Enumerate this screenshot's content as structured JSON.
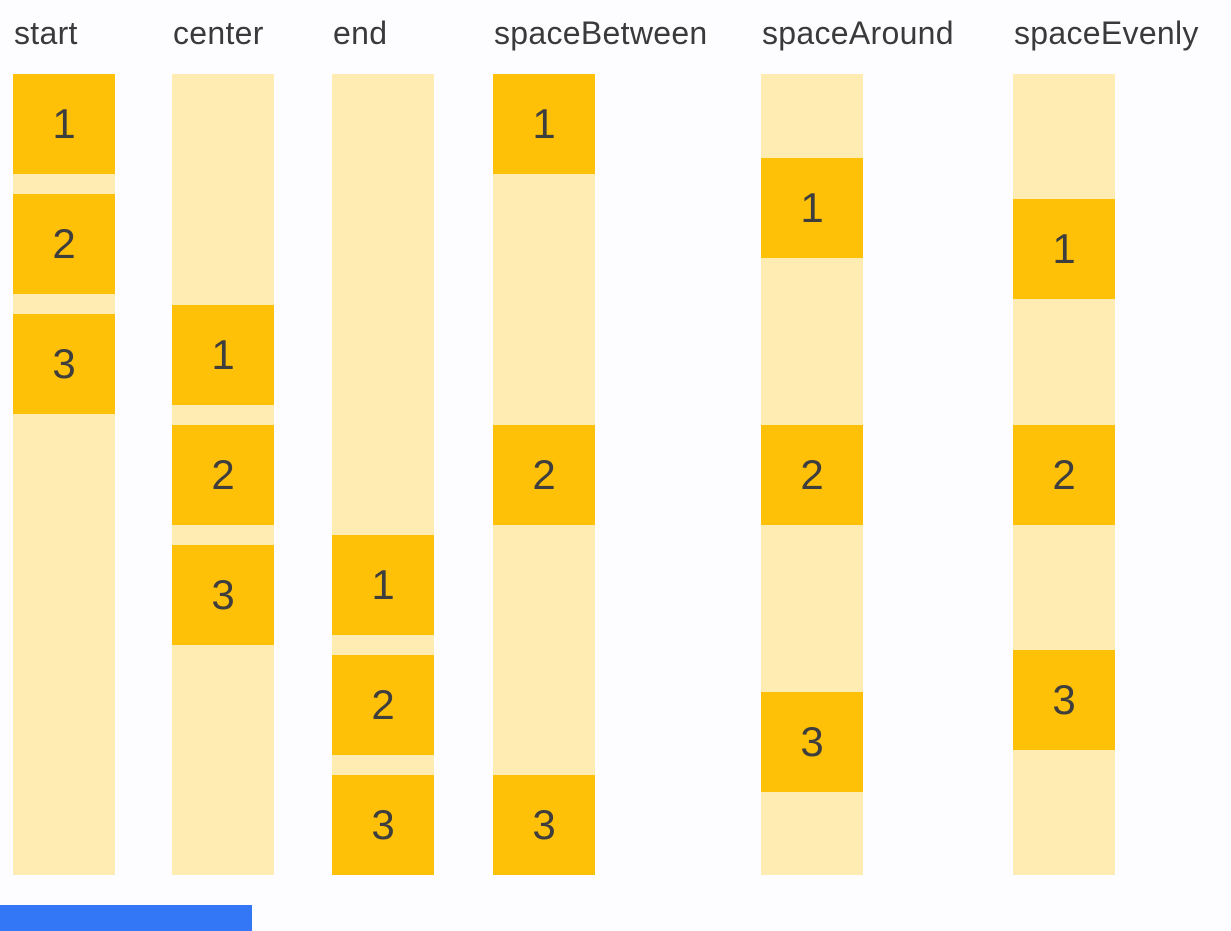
{
  "columns": [
    {
      "label": "start",
      "boxes": [
        "1",
        "2",
        "3"
      ]
    },
    {
      "label": "center",
      "boxes": [
        "1",
        "2",
        "3"
      ]
    },
    {
      "label": "end",
      "boxes": [
        "1",
        "2",
        "3"
      ]
    },
    {
      "label": "spaceBetween",
      "boxes": [
        "1",
        "2",
        "3"
      ]
    },
    {
      "label": "spaceAround",
      "boxes": [
        "1",
        "2",
        "3"
      ]
    },
    {
      "label": "spaceEvenly",
      "boxes": [
        "1",
        "2",
        "3"
      ]
    }
  ],
  "colors": {
    "bg": "#FDFDFF",
    "track": "#FFECB3",
    "box": "#FFC107",
    "label_text": "#3A3A3A",
    "box_text": "#3E3E3E",
    "scrollbar": "#3377F6"
  }
}
